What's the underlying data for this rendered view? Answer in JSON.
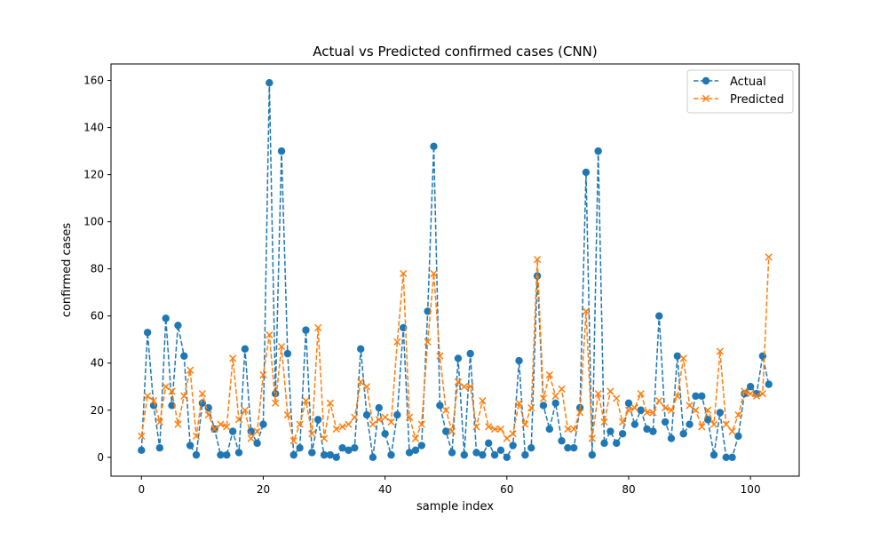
{
  "chart_data": {
    "type": "line",
    "title": "Actual vs Predicted confirmed cases (CNN)",
    "xlabel": "sample index",
    "ylabel": "confirmed cases",
    "xlim": [
      -5,
      108
    ],
    "ylim": [
      -8,
      167
    ],
    "xticks": [
      0,
      20,
      40,
      60,
      80,
      100
    ],
    "yticks": [
      0,
      20,
      40,
      60,
      80,
      100,
      120,
      140,
      160
    ],
    "grid": false,
    "legend_position": "top-right",
    "series": [
      {
        "name": "Actual",
        "color": "#1f77b4",
        "marker": "circle",
        "linestyle": "dashed",
        "values": [
          3,
          53,
          22,
          4,
          59,
          22,
          56,
          43,
          5,
          1,
          23,
          21,
          12,
          1,
          1,
          11,
          2,
          46,
          11,
          6,
          14,
          159,
          27,
          130,
          44,
          1,
          4,
          54,
          2,
          16,
          1,
          1,
          0,
          4,
          3,
          4,
          46,
          18,
          0,
          21,
          10,
          1,
          18,
          55,
          2,
          3,
          5,
          62,
          132,
          22,
          11,
          2,
          42,
          1,
          44,
          2,
          1,
          6,
          1,
          3,
          0,
          5,
          41,
          1,
          4,
          77,
          22,
          12,
          23,
          7,
          4,
          4,
          21,
          121,
          1,
          130,
          6,
          11,
          6,
          10,
          23,
          14,
          20,
          12,
          11,
          60,
          15,
          8,
          43,
          10,
          14,
          26,
          26,
          16,
          1,
          19,
          0,
          0,
          9,
          27,
          30,
          27,
          43,
          31
        ]
      },
      {
        "name": "Predicted",
        "color": "#ff7f0e",
        "marker": "x",
        "linestyle": "dashed",
        "values": [
          9,
          26,
          24,
          15,
          30,
          28,
          14,
          26,
          37,
          9,
          27,
          18,
          12,
          14,
          13,
          42,
          16,
          20,
          8,
          11,
          35,
          52,
          23,
          47,
          18,
          7,
          14,
          24,
          10,
          55,
          8,
          23,
          12,
          13,
          14,
          17,
          32,
          30,
          14,
          16,
          17,
          15,
          49,
          78,
          17,
          8,
          14,
          49,
          78,
          43,
          20,
          11,
          32,
          30,
          30,
          13,
          24,
          13,
          12,
          12,
          8,
          10,
          23,
          14,
          21,
          84,
          25,
          35,
          26,
          29,
          12,
          12,
          19,
          62,
          8,
          27,
          15,
          28,
          25,
          15,
          20,
          21,
          27,
          19,
          19,
          24,
          21,
          20,
          26,
          42,
          22,
          20,
          13,
          20,
          14,
          45,
          14,
          11,
          18,
          28,
          27,
          26,
          27,
          85
        ]
      }
    ]
  }
}
